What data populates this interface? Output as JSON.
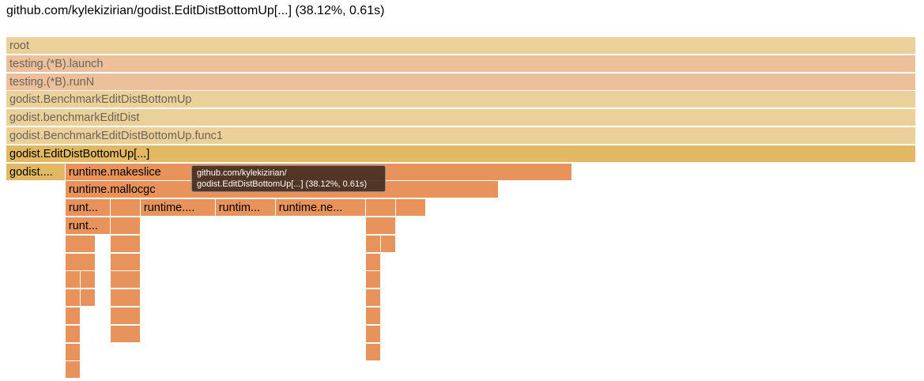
{
  "header": {
    "title": "github.com/kylekizirian/godist.EditDistBottomUp[...] (38.12%, 0.61s)"
  },
  "colors": {
    "light": "#ecd09a",
    "peach": "#ecc09a",
    "focus": "#e3b862",
    "orange": "#e8935b",
    "muted_text": "#6b6359",
    "dark_text": "#000000"
  },
  "frames": [
    {
      "label": "root",
      "depth": 0,
      "start": 0.0,
      "end": 1.0,
      "color": "light"
    },
    {
      "label": "testing.(*B).launch",
      "depth": 1,
      "start": 0.0,
      "end": 1.0,
      "color": "peach"
    },
    {
      "label": "testing.(*B).runN",
      "depth": 2,
      "start": 0.0,
      "end": 1.0,
      "color": "peach"
    },
    {
      "label": "godist.BenchmarkEditDistBottomUp",
      "depth": 3,
      "start": 0.0,
      "end": 1.0,
      "color": "light"
    },
    {
      "label": "godist.benchmarkEditDist",
      "depth": 4,
      "start": 0.0,
      "end": 1.0,
      "color": "light"
    },
    {
      "label": "godist.BenchmarkEditDistBottomUp.func1",
      "depth": 5,
      "start": 0.0,
      "end": 1.0,
      "color": "light"
    },
    {
      "label": "godist.EditDistBottomUp[...]",
      "depth": 6,
      "start": 0.0,
      "end": 1.0,
      "color": "focus"
    },
    {
      "label": "godist....",
      "depth": 7,
      "start": 0.0,
      "end": 0.0651,
      "color": "focus"
    },
    {
      "label": "runtime.makeslice",
      "depth": 7,
      "start": 0.0651,
      "end": 0.6224,
      "color": "orange"
    },
    {
      "label": "runtime.mallocgc",
      "depth": 8,
      "start": 0.0651,
      "end": 0.5417,
      "color": "orange"
    },
    {
      "label": "runt...",
      "depth": 9,
      "start": 0.0651,
      "end": 0.1146,
      "color": "orange"
    },
    {
      "label": "",
      "depth": 9,
      "start": 0.1146,
      "end": 0.1476,
      "color": "orange"
    },
    {
      "label": "runtime....",
      "depth": 9,
      "start": 0.1476,
      "end": 0.23,
      "color": "orange"
    },
    {
      "label": "runtim...",
      "depth": 9,
      "start": 0.23,
      "end": 0.296,
      "color": "orange"
    },
    {
      "label": "runtime.ne...",
      "depth": 9,
      "start": 0.296,
      "end": 0.395,
      "color": "orange"
    },
    {
      "label": "",
      "depth": 9,
      "start": 0.395,
      "end": 0.428,
      "color": "orange"
    },
    {
      "label": "",
      "depth": 9,
      "start": 0.428,
      "end": 0.461,
      "color": "orange"
    },
    {
      "label": "runt...",
      "depth": 10,
      "start": 0.0651,
      "end": 0.1146,
      "color": "orange"
    },
    {
      "label": "",
      "depth": 10,
      "start": 0.1146,
      "end": 0.1476,
      "color": "orange"
    },
    {
      "label": "",
      "depth": 10,
      "start": 0.395,
      "end": 0.428,
      "color": "orange"
    },
    {
      "label": "",
      "depth": 11,
      "start": 0.0651,
      "end": 0.0981,
      "color": "orange"
    },
    {
      "label": "",
      "depth": 11,
      "start": 0.1146,
      "end": 0.1476,
      "color": "orange"
    },
    {
      "label": "",
      "depth": 11,
      "start": 0.395,
      "end": 0.4115,
      "color": "orange"
    },
    {
      "label": "",
      "depth": 11,
      "start": 0.4115,
      "end": 0.428,
      "color": "orange"
    },
    {
      "label": "",
      "depth": 12,
      "start": 0.0651,
      "end": 0.0981,
      "color": "orange"
    },
    {
      "label": "",
      "depth": 12,
      "start": 0.1146,
      "end": 0.1476,
      "color": "orange"
    },
    {
      "label": "",
      "depth": 12,
      "start": 0.395,
      "end": 0.4115,
      "color": "orange"
    },
    {
      "label": "",
      "depth": 13,
      "start": 0.0651,
      "end": 0.0816,
      "color": "orange"
    },
    {
      "label": "",
      "depth": 13,
      "start": 0.0816,
      "end": 0.0981,
      "color": "orange"
    },
    {
      "label": "",
      "depth": 13,
      "start": 0.1146,
      "end": 0.1476,
      "color": "orange"
    },
    {
      "label": "",
      "depth": 13,
      "start": 0.395,
      "end": 0.4115,
      "color": "orange"
    },
    {
      "label": "",
      "depth": 14,
      "start": 0.0651,
      "end": 0.0816,
      "color": "orange"
    },
    {
      "label": "",
      "depth": 14,
      "start": 0.0816,
      "end": 0.0981,
      "color": "orange"
    },
    {
      "label": "",
      "depth": 14,
      "start": 0.1146,
      "end": 0.1476,
      "color": "orange"
    },
    {
      "label": "",
      "depth": 14,
      "start": 0.395,
      "end": 0.4115,
      "color": "orange"
    },
    {
      "label": "",
      "depth": 15,
      "start": 0.0651,
      "end": 0.0816,
      "color": "orange"
    },
    {
      "label": "",
      "depth": 15,
      "start": 0.1146,
      "end": 0.1476,
      "color": "orange"
    },
    {
      "label": "",
      "depth": 15,
      "start": 0.395,
      "end": 0.4115,
      "color": "orange"
    },
    {
      "label": "",
      "depth": 16,
      "start": 0.0651,
      "end": 0.0816,
      "color": "orange"
    },
    {
      "label": "",
      "depth": 16,
      "start": 0.1146,
      "end": 0.1476,
      "color": "orange"
    },
    {
      "label": "",
      "depth": 16,
      "start": 0.395,
      "end": 0.4115,
      "color": "orange"
    },
    {
      "label": "",
      "depth": 17,
      "start": 0.0651,
      "end": 0.0816,
      "color": "orange"
    },
    {
      "label": "",
      "depth": 17,
      "start": 0.395,
      "end": 0.4115,
      "color": "orange"
    },
    {
      "label": "",
      "depth": 18,
      "start": 0.0651,
      "end": 0.0816,
      "color": "orange"
    }
  ],
  "tooltip": {
    "line1": "github.com/kylekizirian/",
    "line2": "godist.EditDistBottomUp[...] (38.12%, 0.61s)"
  }
}
